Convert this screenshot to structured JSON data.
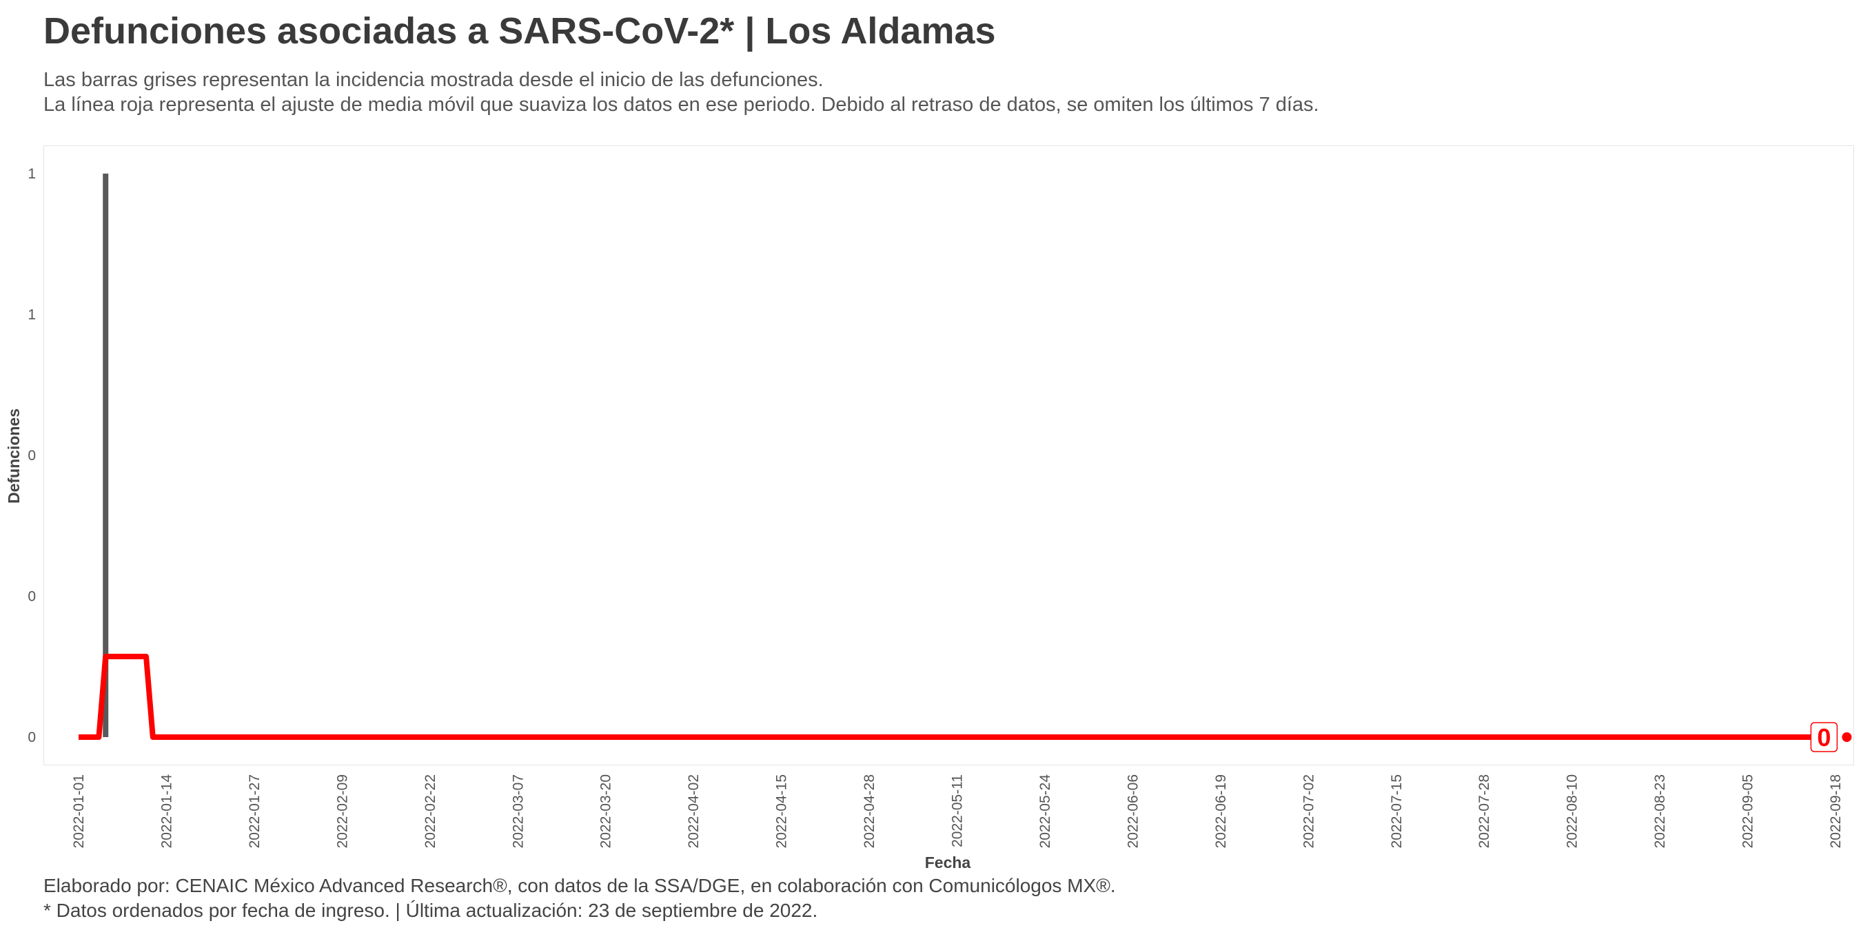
{
  "header": {
    "title": "Defunciones asociadas a SARS-CoV-2* | Los Aldamas",
    "subtitle_line1": "Las barras grises representan la incidencia mostrada desde el inicio de las defunciones.",
    "subtitle_line2": "La línea roja representa el ajuste de media móvil que suaviza los datos en ese periodo. Debido al retraso de datos, se omiten los últimos 7 días."
  },
  "footer": {
    "line1": "Elaborado por: CENAIC México Advanced Research®, con datos de la SSA/DGE, en colaboración con Comunicólogos MX®.",
    "line2": "* Datos ordenados por fecha de ingreso. | Última actualización: 23 de septiembre de 2022."
  },
  "colors": {
    "bars": "#595959",
    "moving_average": "#ff0000",
    "text": "#3c3c3c"
  },
  "chart_data": {
    "type": "bar",
    "title": "Defunciones asociadas a SARS-CoV-2* | Los Aldamas",
    "xlabel": "Fecha",
    "ylabel": "Defunciones",
    "x_range": [
      "2022-01-01",
      "2022-09-18"
    ],
    "ylim": [
      0,
      1
    ],
    "grid": false,
    "y_ticks": [
      {
        "value": 0,
        "label": "0"
      },
      {
        "value": 0.25,
        "label": "0"
      },
      {
        "value": 0.5,
        "label": "0"
      },
      {
        "value": 0.75,
        "label": "1"
      },
      {
        "value": 1,
        "label": "1"
      }
    ],
    "x_ticks": [
      "2022-01-01",
      "2022-01-14",
      "2022-01-27",
      "2022-02-09",
      "2022-02-22",
      "2022-03-07",
      "2022-03-20",
      "2022-04-02",
      "2022-04-15",
      "2022-04-28",
      "2022-05-11",
      "2022-05-24",
      "2022-06-06",
      "2022-06-19",
      "2022-07-02",
      "2022-07-15",
      "2022-07-28",
      "2022-08-10",
      "2022-08-23",
      "2022-09-05",
      "2022-09-18"
    ],
    "series": [
      {
        "type": "bar",
        "color": "#595959",
        "points": [
          {
            "x": "2022-01-05",
            "y": 1
          }
        ]
      },
      {
        "type": "line",
        "color": "#ff0000",
        "points": [
          {
            "x": "2022-01-01",
            "y": 0
          },
          {
            "x": "2022-01-04",
            "y": 0
          },
          {
            "x": "2022-01-05",
            "y": 0.143
          },
          {
            "x": "2022-01-11",
            "y": 0.143
          },
          {
            "x": "2022-01-12",
            "y": 0
          },
          {
            "x": "2022-09-16",
            "y": 0
          }
        ]
      }
    ],
    "end_point": {
      "x": "2022-09-16",
      "y": 0
    },
    "end_label": "0"
  }
}
